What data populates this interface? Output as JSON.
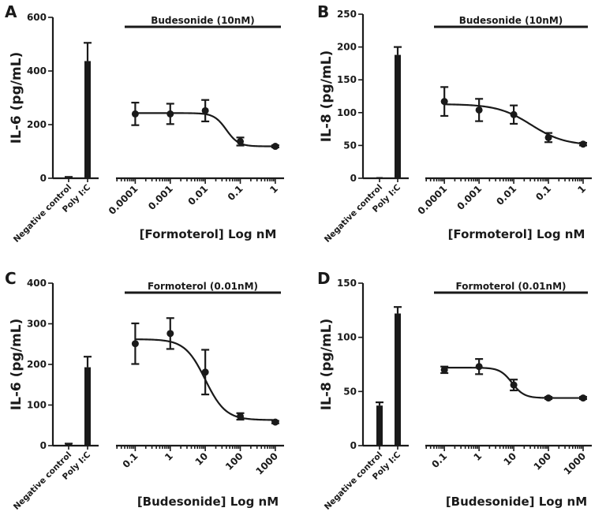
{
  "chart_data": [
    {
      "panel": "A",
      "type": "bar+line",
      "ylabel": "IL-6 (pg/mL)",
      "ylim": [
        0,
        600
      ],
      "yticks": [
        "0",
        "200",
        "400",
        "600"
      ],
      "ytick_values": [
        0,
        200,
        400,
        600
      ],
      "treatment": "Budesonide (10nM)",
      "xlabel": "[Formoterol] Log nM",
      "bars": {
        "categories": [
          "Negative control",
          "Poly I:C"
        ],
        "values": [
          3,
          437
        ],
        "errors": [
          2,
          68
        ]
      },
      "dose": {
        "x": [
          0.0001,
          0.001,
          0.01,
          0.1,
          1
        ],
        "x_labels": [
          "0.0001",
          "0.001",
          "0.01",
          "0.1",
          "1"
        ],
        "y": [
          240,
          240,
          252,
          137,
          119
        ],
        "err": [
          42,
          38,
          40,
          15,
          4
        ],
        "fit": {
          "top": 243,
          "bottom": 119,
          "logEC50": -1.4,
          "hill": 2.5
        }
      }
    },
    {
      "panel": "B",
      "type": "bar+line",
      "ylabel": "IL-8 (pg/mL)",
      "ylim": [
        0,
        250
      ],
      "yticks": [
        "0",
        "50",
        "100",
        "150",
        "200",
        "250"
      ],
      "ytick_values": [
        0,
        50,
        100,
        150,
        200,
        250
      ],
      "treatment": "Budesonide (10nM)",
      "xlabel": "[Formoterol] Log nM",
      "bars": {
        "categories": [
          "Negative control",
          "Poly I:C"
        ],
        "values": [
          0,
          188
        ],
        "errors": [
          0,
          12
        ]
      },
      "dose": {
        "x": [
          0.0001,
          0.001,
          0.01,
          0.1,
          1
        ],
        "x_labels": [
          "0.0001",
          "0.001",
          "0.01",
          "0.1",
          "1"
        ],
        "y": [
          117,
          104,
          97,
          62,
          52
        ],
        "err": [
          22,
          17,
          14,
          7,
          2
        ],
        "fit": {
          "top": 113,
          "bottom": 50,
          "logEC50": -1.5,
          "hill": 0.9
        }
      }
    },
    {
      "panel": "C",
      "type": "bar+line",
      "ylabel": "IL-6 (pg/mL)",
      "ylim": [
        0,
        400
      ],
      "yticks": [
        "0",
        "100",
        "200",
        "300",
        "400"
      ],
      "ytick_values": [
        0,
        100,
        200,
        300,
        400
      ],
      "treatment": "Formoterol (0.01nM)",
      "xlabel": "[Budesonide] Log nM",
      "bars": {
        "categories": [
          "Negative control",
          "Poly I:C"
        ],
        "values": [
          3,
          193
        ],
        "errors": [
          2,
          26
        ]
      },
      "dose": {
        "x": [
          0.1,
          1,
          10,
          100,
          1000
        ],
        "x_labels": [
          "0.1",
          "1",
          "10",
          "100",
          "1000"
        ],
        "y": [
          251,
          276,
          181,
          72,
          58
        ],
        "err": [
          50,
          38,
          55,
          8,
          3
        ],
        "fit": {
          "top": 262,
          "bottom": 63,
          "logEC50": 1.0,
          "hill": 1.5
        }
      }
    },
    {
      "panel": "D",
      "type": "bar+line",
      "ylabel": "IL-8 (pg/mL)",
      "ylim": [
        0,
        150
      ],
      "yticks": [
        "0",
        "50",
        "100",
        "150"
      ],
      "ytick_values": [
        0,
        50,
        100,
        150
      ],
      "treatment": "Formoterol (0.01nM)",
      "xlabel": "[Budesonide] Log nM",
      "bars": {
        "categories": [
          "Negative control",
          "Poly I:C"
        ],
        "values": [
          37,
          122
        ],
        "errors": [
          3,
          6
        ]
      },
      "dose": {
        "x": [
          0.1,
          1,
          10,
          100,
          1000
        ],
        "x_labels": [
          "0.1",
          "1",
          "10",
          "100",
          "1000"
        ],
        "y": [
          70,
          73,
          56,
          44,
          44
        ],
        "err": [
          3,
          7,
          5,
          1,
          1
        ],
        "fit": {
          "top": 72,
          "bottom": 44,
          "logEC50": 0.95,
          "hill": 2.5
        }
      }
    }
  ]
}
